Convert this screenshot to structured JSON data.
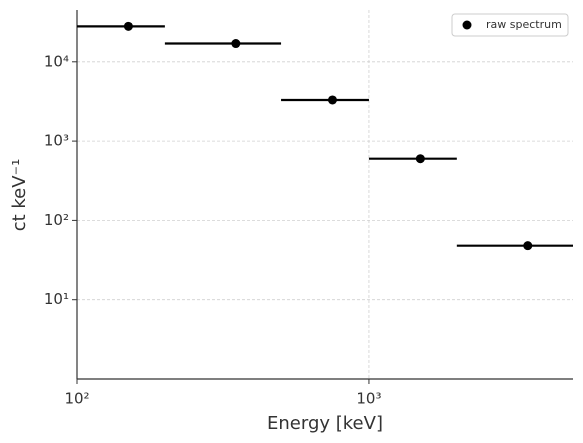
{
  "chart_data": {
    "type": "scatter",
    "x_label": "Energy [keV]",
    "y_label": "ct keV⁻¹",
    "xscale": "log",
    "yscale": "log",
    "xlim": [
      100,
      5000
    ],
    "ylim": [
      1,
      45000
    ],
    "xticks": [
      {
        "value": 100,
        "label": "10²"
      },
      {
        "value": 1000,
        "label": "10³"
      }
    ],
    "yticks": [
      {
        "value": 10,
        "label": "10¹"
      },
      {
        "value": 100,
        "label": "10²"
      },
      {
        "value": 1000,
        "label": "10³"
      },
      {
        "value": 10000,
        "label": "10⁴"
      }
    ],
    "grid": true,
    "legend": "upper right",
    "series": [
      {
        "name": "raw spectrum",
        "color": "#000000",
        "x": [
          150,
          350,
          750,
          1500,
          3500
        ],
        "x_low": [
          100,
          200,
          500,
          1000,
          2000
        ],
        "x_high": [
          200,
          500,
          1000,
          2000,
          5000
        ],
        "values": [
          28000,
          17000,
          3300,
          600,
          48
        ]
      }
    ]
  }
}
